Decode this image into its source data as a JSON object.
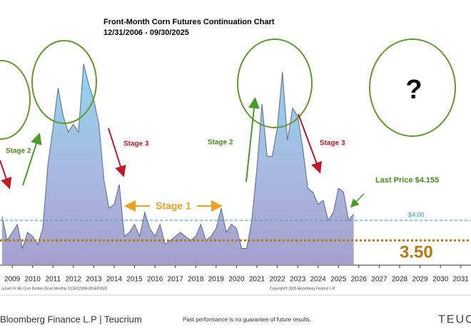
{
  "chart_data": {
    "type": "area",
    "title": "Front-Month Corn Futures Continuation Chart",
    "subtitle": "12/31/2006 - 09/30/2025",
    "x": [
      2008.5,
      2008.75,
      2009.0,
      2009.25,
      2009.5,
      2009.75,
      2010.0,
      2010.25,
      2010.5,
      2010.75,
      2011.0,
      2011.25,
      2011.5,
      2011.75,
      2012.0,
      2012.25,
      2012.5,
      2012.75,
      2013.0,
      2013.25,
      2013.5,
      2013.75,
      2014.0,
      2014.25,
      2014.5,
      2014.75,
      2015.0,
      2015.25,
      2015.5,
      2015.75,
      2016.0,
      2016.25,
      2016.5,
      2016.75,
      2017.0,
      2017.25,
      2017.5,
      2017.75,
      2018.0,
      2018.25,
      2018.5,
      2018.75,
      2019.0,
      2019.25,
      2019.5,
      2019.75,
      2020.0,
      2020.25,
      2020.5,
      2020.75,
      2021.0,
      2021.25,
      2021.5,
      2021.75,
      2022.0,
      2022.25,
      2022.5,
      2022.75,
      2023.0,
      2023.25,
      2023.5,
      2023.75,
      2024.0,
      2024.25,
      2024.5,
      2024.75,
      2025.0,
      2025.25,
      2025.5,
      2025.75
    ],
    "values": [
      4.1,
      3.5,
      3.7,
      3.9,
      3.3,
      3.7,
      3.6,
      3.4,
      3.8,
      5.4,
      6.3,
      7.3,
      6.6,
      6.2,
      6.4,
      6.2,
      7.9,
      7.4,
      7.0,
      6.4,
      5.0,
      4.3,
      4.4,
      4.9,
      3.6,
      3.7,
      3.9,
      3.6,
      4.2,
      3.8,
      3.6,
      3.9,
      3.4,
      3.5,
      3.6,
      3.7,
      3.6,
      3.5,
      3.6,
      3.9,
      3.5,
      3.6,
      3.8,
      4.3,
      3.7,
      3.9,
      3.8,
      3.3,
      3.3,
      4.0,
      5.3,
      6.9,
      5.6,
      5.6,
      6.3,
      7.7,
      6.0,
      6.8,
      6.6,
      5.8,
      4.8,
      4.7,
      4.4,
      4.5,
      4.0,
      4.2,
      4.8,
      4.7,
      4.0,
      4.155
    ],
    "color": "#5a6a8a",
    "xlim": [
      2008.4,
      2031.5
    ],
    "xticks": [
      2009,
      2010,
      2011,
      2012,
      2013,
      2014,
      2015,
      2016,
      2017,
      2018,
      2019,
      2020,
      2021,
      2022,
      2023,
      2024,
      2025,
      2026,
      2027,
      2028,
      2029,
      2030,
      2031
    ],
    "ylim": [
      2.9,
      9.5
    ],
    "hlines": [
      {
        "value": 4,
        "label": "$4.00",
        "color": "#2aa3a3"
      },
      {
        "value": 3.5,
        "label": "3.50",
        "color": "#b87a0e"
      }
    ],
    "annotations": {
      "stage2_left": "Stage 2",
      "stage3_left": "Stage 3",
      "stage1": "Stage 1",
      "stage2_right": "Stage 2",
      "stage3_right": "Stage 3",
      "question": "?",
      "last_price": "Last Price $4.155"
    },
    "source_left": "(uture) Fr Mo Corn Golden Grain Monthly 31DEC2008-30SEP2025",
    "source_right": "Copyright© 2025 Bloomberg Finance L.P."
  },
  "footer": {
    "credit": "Bloomberg Finance L.P | Teucrium",
    "disclaimer": "Past performance is no guarantee of future results.",
    "logo": "TEUC"
  }
}
